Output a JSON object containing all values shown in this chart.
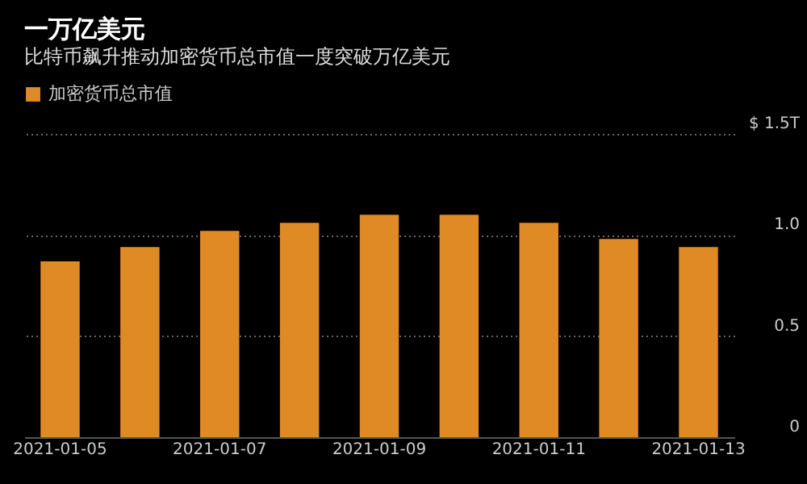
{
  "chart_data": {
    "type": "bar",
    "title": "一万亿美元",
    "subtitle": "比特币飙升推动加密货币总市值一度突破万亿美元",
    "categories": [
      "2021-01-05",
      null,
      "2021-01-07",
      null,
      "2021-01-09",
      null,
      "2021-01-11",
      null,
      "2021-01-13"
    ],
    "series": [
      {
        "name": "加密货币总市值",
        "color": "#e08a26",
        "values": [
          0.87,
          0.94,
          1.02,
          1.06,
          1.1,
          1.1,
          1.06,
          0.98,
          0.94
        ]
      }
    ],
    "ylim": [
      0,
      1.5
    ],
    "yticks": [
      0,
      0.5,
      {
        "value": 1,
        "label": "1.0"
      },
      {
        "value": 1.5,
        "label": "$ 1.5T"
      }
    ],
    "grid": "y",
    "legend": "top left"
  }
}
